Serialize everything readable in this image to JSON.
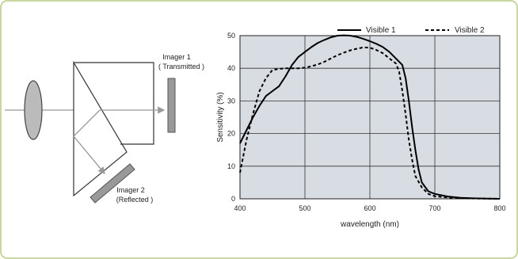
{
  "diagram": {
    "imager1_line1": "Imager 1",
    "imager1_line2": "( Transmitted )",
    "imager2_line1": "Imager 2",
    "imager2_line2": "(Reflected )"
  },
  "chart_data": {
    "type": "line",
    "title": "",
    "xlabel": "wavelength (nm)",
    "ylabel": "Sensitivity (%)",
    "xlim": [
      400,
      800
    ],
    "ylim": [
      0,
      50
    ],
    "xticks": [
      400,
      500,
      600,
      700,
      800
    ],
    "yticks": [
      0,
      10,
      20,
      30,
      40,
      50
    ],
    "grid": true,
    "legend_position": "top-right",
    "series": [
      {
        "name": "Visible 1",
        "style": "solid",
        "color": "#000000",
        "points": [
          [
            400,
            17
          ],
          [
            410,
            21
          ],
          [
            420,
            25
          ],
          [
            430,
            28.5
          ],
          [
            440,
            31.5
          ],
          [
            450,
            33
          ],
          [
            460,
            34.5
          ],
          [
            470,
            37.5
          ],
          [
            480,
            41
          ],
          [
            490,
            43.5
          ],
          [
            500,
            45
          ],
          [
            510,
            46.5
          ],
          [
            520,
            47.8
          ],
          [
            530,
            48.7
          ],
          [
            540,
            49.5
          ],
          [
            550,
            50
          ],
          [
            560,
            50.1
          ],
          [
            570,
            50
          ],
          [
            580,
            49.6
          ],
          [
            590,
            49
          ],
          [
            600,
            48.3
          ],
          [
            610,
            47.5
          ],
          [
            620,
            46.5
          ],
          [
            630,
            45
          ],
          [
            640,
            43
          ],
          [
            650,
            41
          ],
          [
            655,
            37
          ],
          [
            660,
            30
          ],
          [
            665,
            22
          ],
          [
            670,
            15
          ],
          [
            675,
            9
          ],
          [
            680,
            5
          ],
          [
            690,
            2.3
          ],
          [
            700,
            1.5
          ],
          [
            720,
            0.7
          ],
          [
            740,
            0.3
          ],
          [
            760,
            0.15
          ],
          [
            780,
            0.05
          ],
          [
            800,
            0
          ]
        ]
      },
      {
        "name": "Visible 2",
        "style": "dashed",
        "color": "#000000",
        "points": [
          [
            400,
            8
          ],
          [
            410,
            18
          ],
          [
            420,
            26
          ],
          [
            430,
            33
          ],
          [
            440,
            37
          ],
          [
            450,
            39.5
          ],
          [
            460,
            39.8
          ],
          [
            470,
            40
          ],
          [
            480,
            40
          ],
          [
            490,
            40
          ],
          [
            500,
            40.2
          ],
          [
            510,
            40.6
          ],
          [
            520,
            41.2
          ],
          [
            530,
            42
          ],
          [
            540,
            43
          ],
          [
            550,
            44
          ],
          [
            560,
            44.8
          ],
          [
            570,
            45.5
          ],
          [
            580,
            46
          ],
          [
            590,
            46.4
          ],
          [
            600,
            46.3
          ],
          [
            610,
            45.6
          ],
          [
            620,
            44.6
          ],
          [
            630,
            43
          ],
          [
            640,
            41.5
          ],
          [
            645,
            39
          ],
          [
            650,
            33
          ],
          [
            655,
            26
          ],
          [
            660,
            18
          ],
          [
            665,
            12
          ],
          [
            670,
            7
          ],
          [
            680,
            3.5
          ],
          [
            690,
            1.5
          ],
          [
            700,
            0.8
          ],
          [
            720,
            0.4
          ],
          [
            740,
            0.2
          ],
          [
            760,
            0.1
          ],
          [
            780,
            0.05
          ],
          [
            800,
            0
          ]
        ]
      }
    ]
  }
}
